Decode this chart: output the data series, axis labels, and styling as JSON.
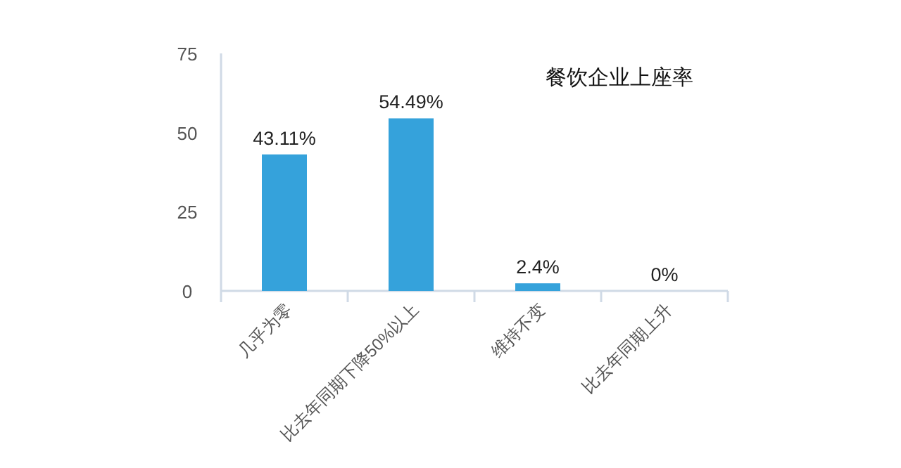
{
  "chart_data": {
    "type": "bar",
    "title": "餐饮企业上座率",
    "categories": [
      "几乎为零",
      "比去年同期下降50%以上",
      "维持不变",
      "比去年同期上升"
    ],
    "values": [
      43.11,
      54.49,
      2.4,
      0
    ],
    "value_labels": [
      "43.11%",
      "54.49%",
      "2.4%",
      "0%"
    ],
    "color": "#35a2db",
    "ylim": [
      0,
      75
    ],
    "yticks": [
      0,
      25,
      50,
      75
    ],
    "grid": false
  }
}
